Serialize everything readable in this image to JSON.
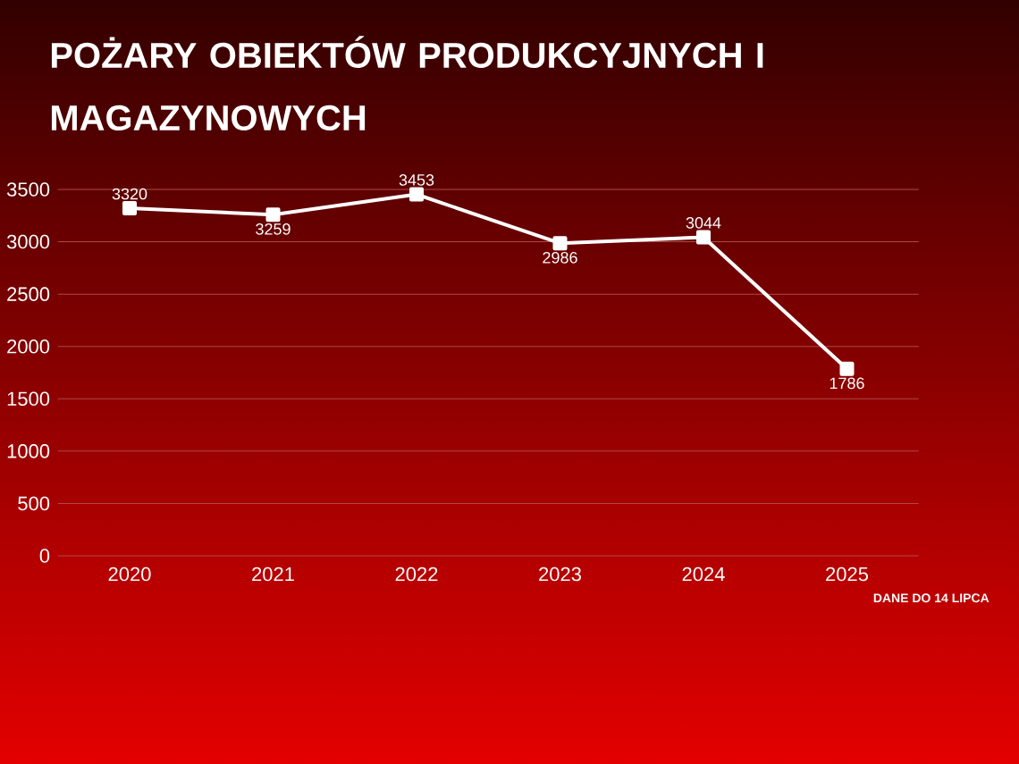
{
  "chart_data": {
    "type": "line",
    "title": "POŻARY OBIEKTÓW PRODUKCYJNYCH I MAGAZYNOWYCH",
    "categories": [
      "2020",
      "2021",
      "2022",
      "2023",
      "2024",
      "2025"
    ],
    "values": [
      3320,
      3259,
      3453,
      2986,
      3044,
      1786
    ],
    "color": "#ffffff",
    "ylim": [
      0,
      3500
    ],
    "yticks": [
      0,
      500,
      1000,
      1500,
      2000,
      2500,
      3000,
      3500
    ],
    "grid": "y",
    "marker": "square",
    "data_labels": true,
    "annotations": [
      "DANE DO 14 LIPCA"
    ]
  }
}
